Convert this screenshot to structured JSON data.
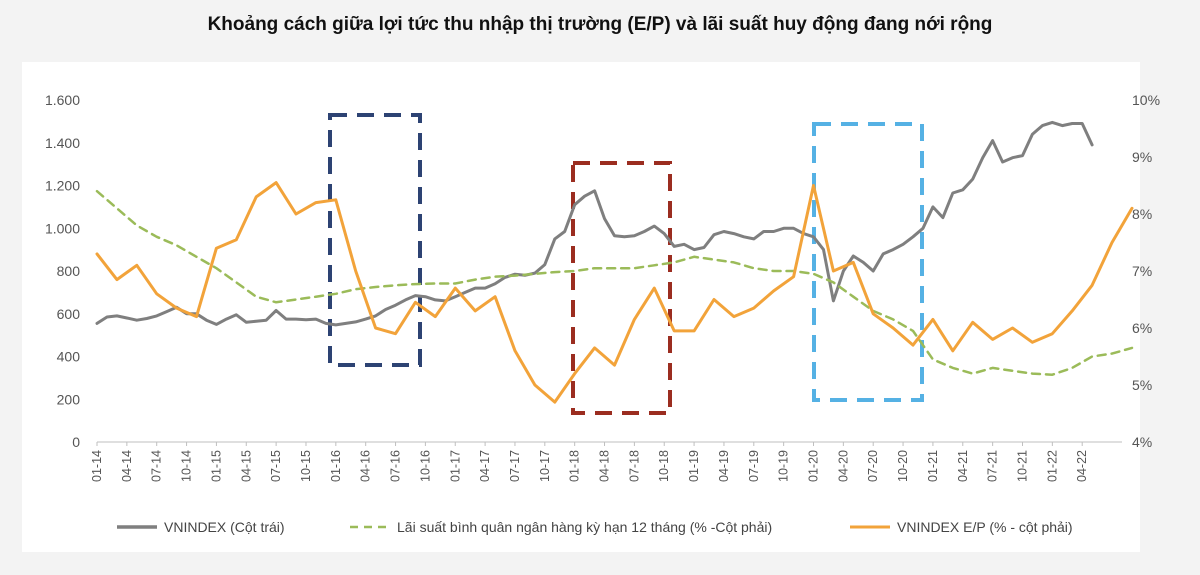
{
  "chart_data": {
    "type": "line",
    "title": "Khoảng cách giữa lợi tức thu nhập thị trường (E/P) và lãi suất huy động đang nới rộng",
    "left_axis": {
      "ylim": [
        0,
        1600
      ],
      "ticks": [
        0,
        200,
        400,
        600,
        800,
        1000,
        1200,
        1400,
        1600
      ],
      "tick_labels": [
        "0",
        "200",
        "400",
        "600",
        "800",
        "1.000",
        "1.200",
        "1.400",
        "1.600"
      ]
    },
    "right_axis": {
      "ylim": [
        4,
        10
      ],
      "ticks": [
        4,
        5,
        6,
        7,
        8,
        9,
        10
      ],
      "tick_labels": [
        "4%",
        "5%",
        "6%",
        "7%",
        "8%",
        "9%",
        "10%"
      ]
    },
    "x_tick_labels": [
      "01-14",
      "04-14",
      "07-14",
      "10-14",
      "01-15",
      "04-15",
      "07-15",
      "10-15",
      "01-16",
      "04-16",
      "07-16",
      "10-16",
      "01-17",
      "04-17",
      "07-17",
      "10-17",
      "01-18",
      "04-18",
      "07-18",
      "10-18",
      "01-19",
      "04-19",
      "07-19",
      "10-19",
      "01-20",
      "04-20",
      "07-20",
      "10-20",
      "01-21",
      "04-21",
      "07-21",
      "10-21",
      "01-22",
      "04-22"
    ],
    "legend": [
      "VNINDEX (Cột trái)",
      "Lãi suất bình quân ngân hàng kỳ hạn 12 tháng (% -Cột phải)",
      "VNINDEX E/P (% - cột phải)"
    ],
    "series": [
      {
        "name": "VNINDEX (Cột trái)",
        "axis": "left",
        "color": "#7f7f7f",
        "style": "solid",
        "x": [
          0,
          1,
          2,
          3,
          4,
          5,
          6,
          7,
          8,
          9,
          10,
          11,
          12,
          13,
          14,
          15,
          16,
          17,
          18,
          19,
          20,
          21,
          22,
          23,
          24,
          25,
          26,
          27,
          28,
          29,
          30,
          31,
          32,
          33,
          34,
          35,
          36,
          37,
          38,
          39,
          40,
          41,
          42,
          43,
          44,
          45,
          46,
          47,
          48,
          49,
          50,
          51,
          52,
          53,
          54,
          55,
          56,
          57,
          58,
          59,
          60,
          61,
          62,
          63,
          64,
          65,
          66,
          67,
          68,
          69,
          70,
          71,
          72,
          73,
          74,
          75,
          76,
          77,
          78,
          79,
          80,
          81,
          82,
          83,
          84,
          85,
          86,
          87,
          88,
          89,
          90,
          91,
          92,
          93,
          94,
          95,
          96,
          97,
          98,
          99,
          100
        ],
        "values": [
          555,
          585,
          590,
          580,
          570,
          578,
          590,
          610,
          630,
          600,
          600,
          570,
          550,
          575,
          595,
          560,
          565,
          570,
          615,
          575,
          575,
          572,
          575,
          555,
          548,
          555,
          562,
          575,
          590,
          620,
          640,
          665,
          685,
          680,
          665,
          660,
          680,
          700,
          720,
          720,
          740,
          770,
          785,
          780,
          790,
          830,
          950,
          985,
          1110,
          1150,
          1175,
          1045,
          965,
          960,
          965,
          985,
          1010,
          975,
          915,
          925,
          900,
          910,
          970,
          985,
          975,
          960,
          950,
          985,
          985,
          1000,
          1000,
          975,
          960,
          900,
          660,
          800,
          870,
          840,
          800,
          880,
          900,
          925,
          960,
          1000,
          1100,
          1050,
          1165,
          1180,
          1230,
          1330,
          1410,
          1310,
          1330,
          1340,
          1440,
          1480,
          1495,
          1480,
          1490,
          1490,
          1390
        ]
      },
      {
        "name": "Lãi suất bình quân ngân hàng kỳ hạn 12 tháng (% -Cột phải)",
        "axis": "right",
        "color": "#9bbb59",
        "style": "dashed",
        "x": [
          0,
          2,
          4,
          6,
          8,
          10,
          12,
          14,
          16,
          18,
          20,
          22,
          24,
          26,
          28,
          30,
          32,
          34,
          36,
          38,
          40,
          42,
          44,
          46,
          48,
          50,
          52,
          54,
          56,
          58,
          60,
          62,
          64,
          66,
          68,
          70,
          72,
          74,
          76,
          78,
          80,
          82,
          84,
          86,
          88,
          90,
          92,
          94,
          96,
          98,
          100,
          102,
          104
        ],
        "values": [
          8.4,
          8.1,
          7.8,
          7.6,
          7.45,
          7.25,
          7.05,
          6.8,
          6.55,
          6.45,
          6.5,
          6.55,
          6.6,
          6.68,
          6.72,
          6.75,
          6.77,
          6.78,
          6.78,
          6.85,
          6.9,
          6.92,
          6.95,
          6.98,
          7.0,
          7.05,
          7.05,
          7.05,
          7.1,
          7.15,
          7.25,
          7.2,
          7.15,
          7.05,
          7.0,
          7.0,
          6.95,
          6.8,
          6.55,
          6.3,
          6.15,
          5.95,
          5.45,
          5.3,
          5.2,
          5.3,
          5.25,
          5.2,
          5.18,
          5.3,
          5.5,
          5.55,
          5.65
        ]
      },
      {
        "name": "VNINDEX E/P (% - cột phải)",
        "axis": "right",
        "color": "#f2a33a",
        "style": "solid",
        "x": [
          0,
          2,
          4,
          6,
          8,
          10,
          12,
          14,
          16,
          18,
          20,
          22,
          24,
          26,
          28,
          30,
          32,
          34,
          36,
          38,
          40,
          42,
          44,
          46,
          48,
          50,
          52,
          54,
          56,
          58,
          60,
          62,
          64,
          66,
          68,
          70,
          72,
          74,
          76,
          78,
          80,
          82,
          84,
          86,
          88,
          90,
          92,
          94,
          96,
          98,
          100,
          102,
          104
        ],
        "values": [
          7.3,
          6.85,
          7.1,
          6.6,
          6.35,
          6.2,
          7.4,
          7.55,
          8.3,
          8.55,
          8.0,
          8.2,
          8.25,
          7.0,
          6.0,
          5.9,
          6.45,
          6.2,
          6.7,
          6.3,
          6.55,
          5.6,
          5.0,
          4.7,
          5.2,
          5.65,
          5.35,
          6.15,
          6.7,
          5.95,
          5.95,
          6.5,
          6.2,
          6.35,
          6.65,
          6.9,
          8.5,
          7.0,
          7.15,
          6.25,
          6.0,
          5.7,
          6.15,
          5.6,
          6.1,
          5.8,
          6.0,
          5.75,
          5.9,
          6.3,
          6.75,
          7.5,
          8.1
        ]
      }
    ],
    "grid": false,
    "legend_position": "bottom"
  }
}
